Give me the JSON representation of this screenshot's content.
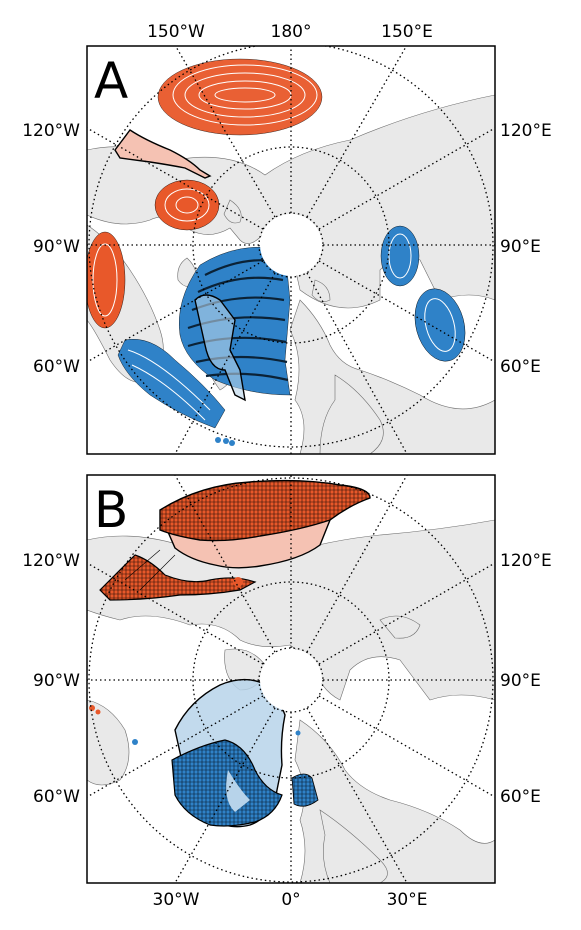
{
  "panels": [
    {
      "letter": "A",
      "labels": {
        "top_150w": "150°W",
        "top_180": "180°",
        "top_150e": "150°E",
        "left_120w": "120°W",
        "left_90w": "90°W",
        "left_60w": "60°W",
        "right_120e": "120°E",
        "right_90e": "90°E",
        "right_60e": "60°E"
      }
    },
    {
      "letter": "B",
      "labels": {
        "left_120w": "120°W",
        "left_90w": "90°W",
        "left_60w": "60°W",
        "right_120e": "120°E",
        "right_90e": "90°E",
        "right_60e": "60°E",
        "bottom_30w": "30°W",
        "bottom_0": "0°",
        "bottom_30e": "30°E"
      }
    }
  ],
  "colors": {
    "warm": "#e8582a",
    "warm_light": "#f5c2b3",
    "cool": "#2f82c8",
    "cool_light": "#b7d3ea",
    "land": "#e9e9e9"
  }
}
